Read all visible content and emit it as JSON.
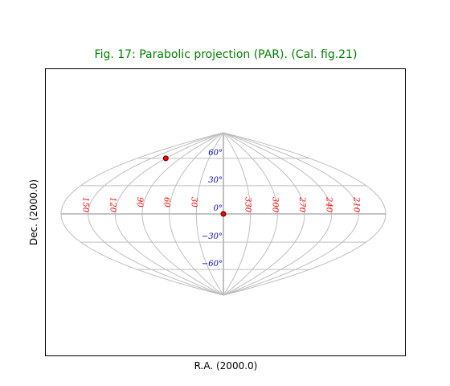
{
  "chart_data": {
    "type": "scatter",
    "title": "Fig. 17: Parabolic projection (PAR). (Cal. fig.21)",
    "xlabel": "R.A. (2000.0)",
    "ylabel": "Dec. (2000.0)",
    "projection": "parabolic",
    "grid": true,
    "graticule": {
      "longitudes": [
        0,
        30,
        60,
        90,
        120,
        150,
        180,
        210,
        240,
        270,
        300,
        330
      ],
      "latitudes": [
        -90,
        -60,
        -30,
        0,
        30,
        60,
        90
      ]
    },
    "lon_labels": [
      {
        "lon": 150,
        "text": "150"
      },
      {
        "lon": 120,
        "text": "120"
      },
      {
        "lon": 90,
        "text": "90"
      },
      {
        "lon": 60,
        "text": "60"
      },
      {
        "lon": 30,
        "text": "30"
      },
      {
        "lon": 330,
        "text": "330"
      },
      {
        "lon": 300,
        "text": "300"
      },
      {
        "lon": 270,
        "text": "270"
      },
      {
        "lon": 240,
        "text": "240"
      },
      {
        "lon": 210,
        "text": "210"
      }
    ],
    "lat_labels": [
      {
        "lat": 60,
        "text": "60°"
      },
      {
        "lat": 30,
        "text": "30°"
      },
      {
        "lat": 0,
        "text": "0°"
      },
      {
        "lat": -30,
        "text": "−30°"
      },
      {
        "lat": -60,
        "text": "−60°"
      }
    ],
    "points": [
      {
        "lon": 120,
        "lat": 60,
        "color": "#ff0000"
      },
      {
        "lon": 0,
        "lat": 0,
        "color": "#ff0000"
      }
    ]
  }
}
